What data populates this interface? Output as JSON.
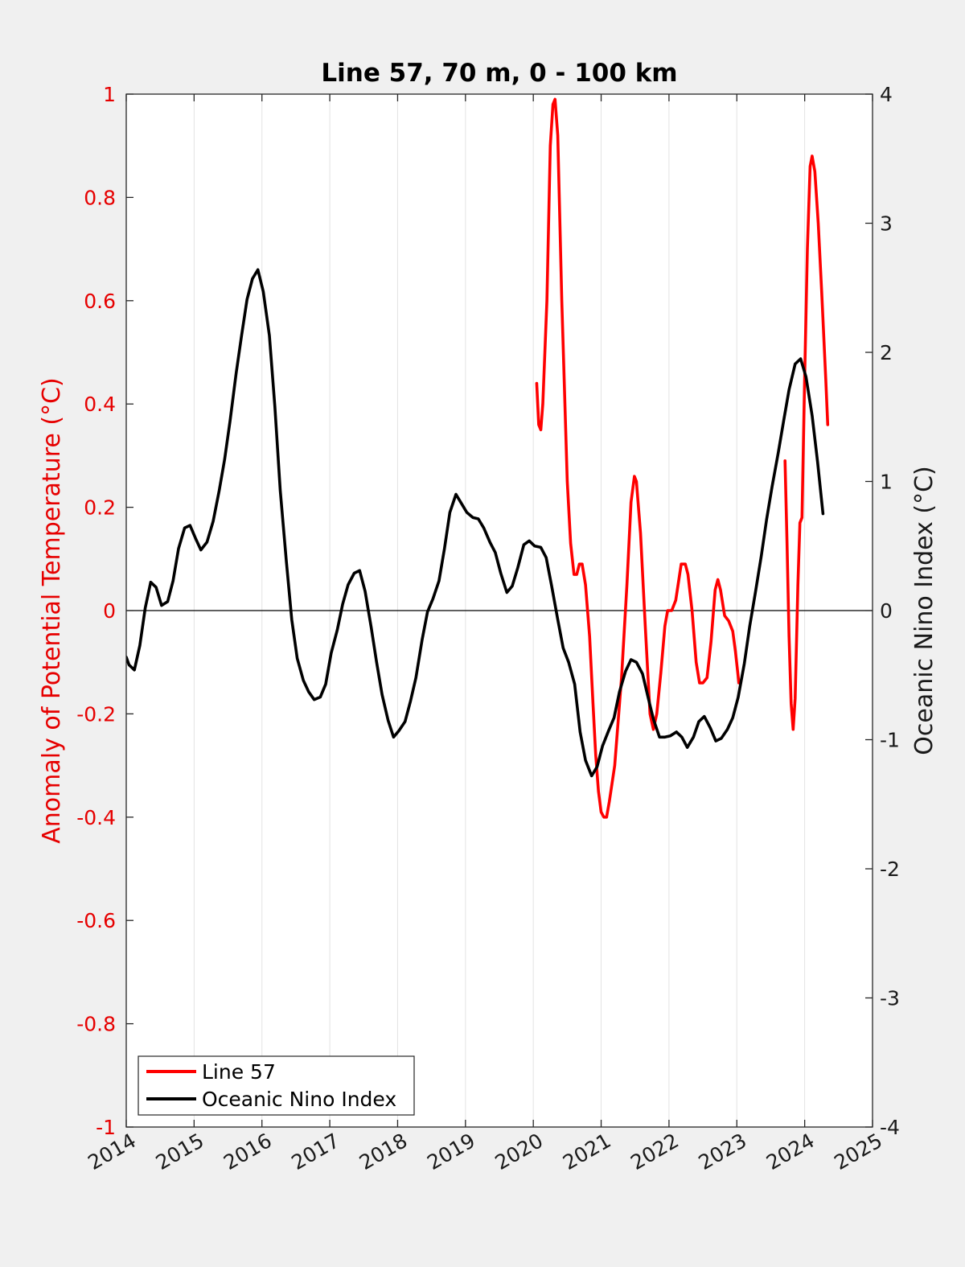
{
  "chart_data": {
    "type": "line",
    "title": "Line 57, 70 m, 0 - 100 km",
    "xlabel": "",
    "ylabel_left": "Anomaly of Potential Temperature (°C)",
    "ylabel_right": "Oceanic Nino Index (°C)",
    "xlim": [
      2014,
      2025
    ],
    "ylim_left": [
      -1,
      1
    ],
    "ylim_right": [
      -4,
      4
    ],
    "x_ticks": [
      "2014",
      "2015",
      "2016",
      "2017",
      "2018",
      "2019",
      "2020",
      "2021",
      "2022",
      "2023",
      "2024",
      "2025"
    ],
    "y_ticks_left": [
      "-1",
      "-0.8",
      "-0.6",
      "-0.4",
      "-0.2",
      "0",
      "0.2",
      "0.4",
      "0.6",
      "0.8",
      "1"
    ],
    "y_ticks_right": [
      "-4",
      "-3",
      "-2",
      "-1",
      "0",
      "1",
      "2",
      "3",
      "4"
    ],
    "grid": "vertical",
    "zero_line": true,
    "legend_position": "bottom-left",
    "colors": {
      "line57": "#ff0000",
      "oni": "#000000",
      "left_axis": "#e60000"
    },
    "series": [
      {
        "name": "Line 57",
        "axis": "left",
        "segments": [
          [
            [
              2020.05,
              0.44
            ],
            [
              2020.08,
              0.36
            ],
            [
              2020.11,
              0.35
            ],
            [
              2020.14,
              0.4
            ],
            [
              2020.2,
              0.6
            ],
            [
              2020.25,
              0.9
            ],
            [
              2020.29,
              0.98
            ],
            [
              2020.32,
              0.99
            ],
            [
              2020.36,
              0.92
            ],
            [
              2020.42,
              0.6
            ],
            [
              2020.5,
              0.25
            ],
            [
              2020.55,
              0.13
            ],
            [
              2020.6,
              0.07
            ],
            [
              2020.64,
              0.07
            ],
            [
              2020.68,
              0.09
            ],
            [
              2020.72,
              0.09
            ],
            [
              2020.77,
              0.05
            ],
            [
              2020.83,
              -0.05
            ],
            [
              2020.88,
              -0.18
            ],
            [
              2020.92,
              -0.28
            ],
            [
              2020.96,
              -0.35
            ],
            [
              2021.0,
              -0.39
            ],
            [
              2021.04,
              -0.4
            ],
            [
              2021.08,
              -0.4
            ],
            [
              2021.12,
              -0.37
            ],
            [
              2021.2,
              -0.3
            ],
            [
              2021.3,
              -0.13
            ],
            [
              2021.38,
              0.05
            ],
            [
              2021.44,
              0.21
            ],
            [
              2021.49,
              0.26
            ],
            [
              2021.52,
              0.25
            ],
            [
              2021.58,
              0.15
            ],
            [
              2021.65,
              -0.03
            ],
            [
              2021.72,
              -0.2
            ],
            [
              2021.77,
              -0.23
            ],
            [
              2021.82,
              -0.2
            ],
            [
              2021.88,
              -0.12
            ],
            [
              2021.94,
              -0.03
            ],
            [
              2021.98,
              0.0
            ],
            [
              2022.04,
              0.0
            ],
            [
              2022.1,
              0.02
            ],
            [
              2022.18,
              0.09
            ],
            [
              2022.24,
              0.09
            ],
            [
              2022.28,
              0.07
            ],
            [
              2022.34,
              0.0
            ],
            [
              2022.4,
              -0.1
            ],
            [
              2022.45,
              -0.14
            ],
            [
              2022.5,
              -0.14
            ],
            [
              2022.56,
              -0.13
            ],
            [
              2022.62,
              -0.06
            ],
            [
              2022.68,
              0.04
            ],
            [
              2022.72,
              0.06
            ],
            [
              2022.76,
              0.04
            ],
            [
              2022.82,
              -0.01
            ],
            [
              2022.88,
              -0.02
            ],
            [
              2022.94,
              -0.04
            ],
            [
              2022.98,
              -0.08
            ],
            [
              2023.03,
              -0.14
            ]
          ],
          [
            [
              2023.71,
              0.29
            ],
            [
              2023.74,
              0.13
            ],
            [
              2023.77,
              -0.05
            ],
            [
              2023.8,
              -0.18
            ],
            [
              2023.83,
              -0.23
            ],
            [
              2023.86,
              -0.17
            ],
            [
              2023.9,
              0.05
            ],
            [
              2023.93,
              0.17
            ],
            [
              2023.96,
              0.18
            ],
            [
              2024.0,
              0.45
            ],
            [
              2024.04,
              0.7
            ],
            [
              2024.08,
              0.86
            ],
            [
              2024.11,
              0.88
            ],
            [
              2024.15,
              0.85
            ],
            [
              2024.2,
              0.75
            ],
            [
              2024.25,
              0.62
            ],
            [
              2024.31,
              0.45
            ],
            [
              2024.34,
              0.36
            ]
          ]
        ]
      },
      {
        "name": "Oceanic Nino Index",
        "axis": "right",
        "points": [
          [
            2014.0,
            -0.36
          ],
          [
            2014.04,
            -0.42
          ],
          [
            2014.12,
            -0.46
          ],
          [
            2014.2,
            -0.27
          ],
          [
            2014.28,
            0.02
          ],
          [
            2014.36,
            0.22
          ],
          [
            2014.44,
            0.18
          ],
          [
            2014.52,
            0.04
          ],
          [
            2014.61,
            0.07
          ],
          [
            2014.69,
            0.23
          ],
          [
            2014.77,
            0.48
          ],
          [
            2014.86,
            0.64
          ],
          [
            2014.94,
            0.66
          ],
          [
            2015.02,
            0.56
          ],
          [
            2015.1,
            0.47
          ],
          [
            2015.19,
            0.53
          ],
          [
            2015.28,
            0.69
          ],
          [
            2015.37,
            0.93
          ],
          [
            2015.45,
            1.17
          ],
          [
            2015.53,
            1.47
          ],
          [
            2015.62,
            1.84
          ],
          [
            2015.7,
            2.13
          ],
          [
            2015.78,
            2.41
          ],
          [
            2015.86,
            2.57
          ],
          [
            2015.94,
            2.64
          ],
          [
            2016.02,
            2.47
          ],
          [
            2016.11,
            2.13
          ],
          [
            2016.19,
            1.58
          ],
          [
            2016.27,
            0.93
          ],
          [
            2016.36,
            0.38
          ],
          [
            2016.44,
            -0.07
          ],
          [
            2016.52,
            -0.37
          ],
          [
            2016.61,
            -0.54
          ],
          [
            2016.69,
            -0.63
          ],
          [
            2016.77,
            -0.69
          ],
          [
            2016.86,
            -0.67
          ],
          [
            2016.94,
            -0.57
          ],
          [
            2017.02,
            -0.33
          ],
          [
            2017.11,
            -0.15
          ],
          [
            2017.19,
            0.05
          ],
          [
            2017.27,
            0.2
          ],
          [
            2017.36,
            0.29
          ],
          [
            2017.44,
            0.31
          ],
          [
            2017.52,
            0.15
          ],
          [
            2017.61,
            -0.13
          ],
          [
            2017.69,
            -0.4
          ],
          [
            2017.77,
            -0.65
          ],
          [
            2017.86,
            -0.85
          ],
          [
            2017.94,
            -0.98
          ],
          [
            2018.02,
            -0.93
          ],
          [
            2018.11,
            -0.86
          ],
          [
            2018.19,
            -0.7
          ],
          [
            2018.27,
            -0.52
          ],
          [
            2018.36,
            -0.23
          ],
          [
            2018.44,
            -0.01
          ],
          [
            2018.52,
            0.09
          ],
          [
            2018.61,
            0.23
          ],
          [
            2018.69,
            0.48
          ],
          [
            2018.77,
            0.76
          ],
          [
            2018.86,
            0.9
          ],
          [
            2018.94,
            0.83
          ],
          [
            2019.02,
            0.76
          ],
          [
            2019.11,
            0.72
          ],
          [
            2019.19,
            0.71
          ],
          [
            2019.27,
            0.64
          ],
          [
            2019.36,
            0.53
          ],
          [
            2019.44,
            0.45
          ],
          [
            2019.52,
            0.29
          ],
          [
            2019.61,
            0.14
          ],
          [
            2019.69,
            0.19
          ],
          [
            2019.77,
            0.33
          ],
          [
            2019.86,
            0.51
          ],
          [
            2019.94,
            0.54
          ],
          [
            2020.02,
            0.5
          ],
          [
            2020.11,
            0.49
          ],
          [
            2020.19,
            0.41
          ],
          [
            2020.27,
            0.19
          ],
          [
            2020.36,
            -0.07
          ],
          [
            2020.44,
            -0.29
          ],
          [
            2020.52,
            -0.4
          ],
          [
            2020.61,
            -0.57
          ],
          [
            2020.69,
            -0.94
          ],
          [
            2020.77,
            -1.16
          ],
          [
            2020.86,
            -1.28
          ],
          [
            2020.94,
            -1.21
          ],
          [
            2021.02,
            -1.05
          ],
          [
            2021.11,
            -0.93
          ],
          [
            2021.19,
            -0.83
          ],
          [
            2021.27,
            -0.63
          ],
          [
            2021.36,
            -0.47
          ],
          [
            2021.44,
            -0.38
          ],
          [
            2021.52,
            -0.4
          ],
          [
            2021.61,
            -0.49
          ],
          [
            2021.69,
            -0.67
          ],
          [
            2021.77,
            -0.84
          ],
          [
            2021.86,
            -0.98
          ],
          [
            2021.94,
            -0.98
          ],
          [
            2022.02,
            -0.97
          ],
          [
            2022.11,
            -0.94
          ],
          [
            2022.19,
            -0.98
          ],
          [
            2022.27,
            -1.06
          ],
          [
            2022.36,
            -0.98
          ],
          [
            2022.44,
            -0.86
          ],
          [
            2022.52,
            -0.82
          ],
          [
            2022.61,
            -0.91
          ],
          [
            2022.69,
            -1.01
          ],
          [
            2022.77,
            -0.99
          ],
          [
            2022.86,
            -0.92
          ],
          [
            2022.94,
            -0.83
          ],
          [
            2023.02,
            -0.67
          ],
          [
            2023.11,
            -0.41
          ],
          [
            2023.19,
            -0.12
          ],
          [
            2023.27,
            0.13
          ],
          [
            2023.36,
            0.42
          ],
          [
            2023.44,
            0.71
          ],
          [
            2023.52,
            0.96
          ],
          [
            2023.61,
            1.22
          ],
          [
            2023.69,
            1.47
          ],
          [
            2023.77,
            1.71
          ],
          [
            2023.86,
            1.91
          ],
          [
            2023.94,
            1.95
          ],
          [
            2024.02,
            1.81
          ],
          [
            2024.11,
            1.51
          ],
          [
            2024.19,
            1.15
          ],
          [
            2024.27,
            0.75
          ]
        ]
      }
    ]
  },
  "legend": {
    "items": [
      {
        "label": "Line 57",
        "color": "#ff0000"
      },
      {
        "label": "Oceanic Nino Index",
        "color": "#000000"
      }
    ]
  }
}
